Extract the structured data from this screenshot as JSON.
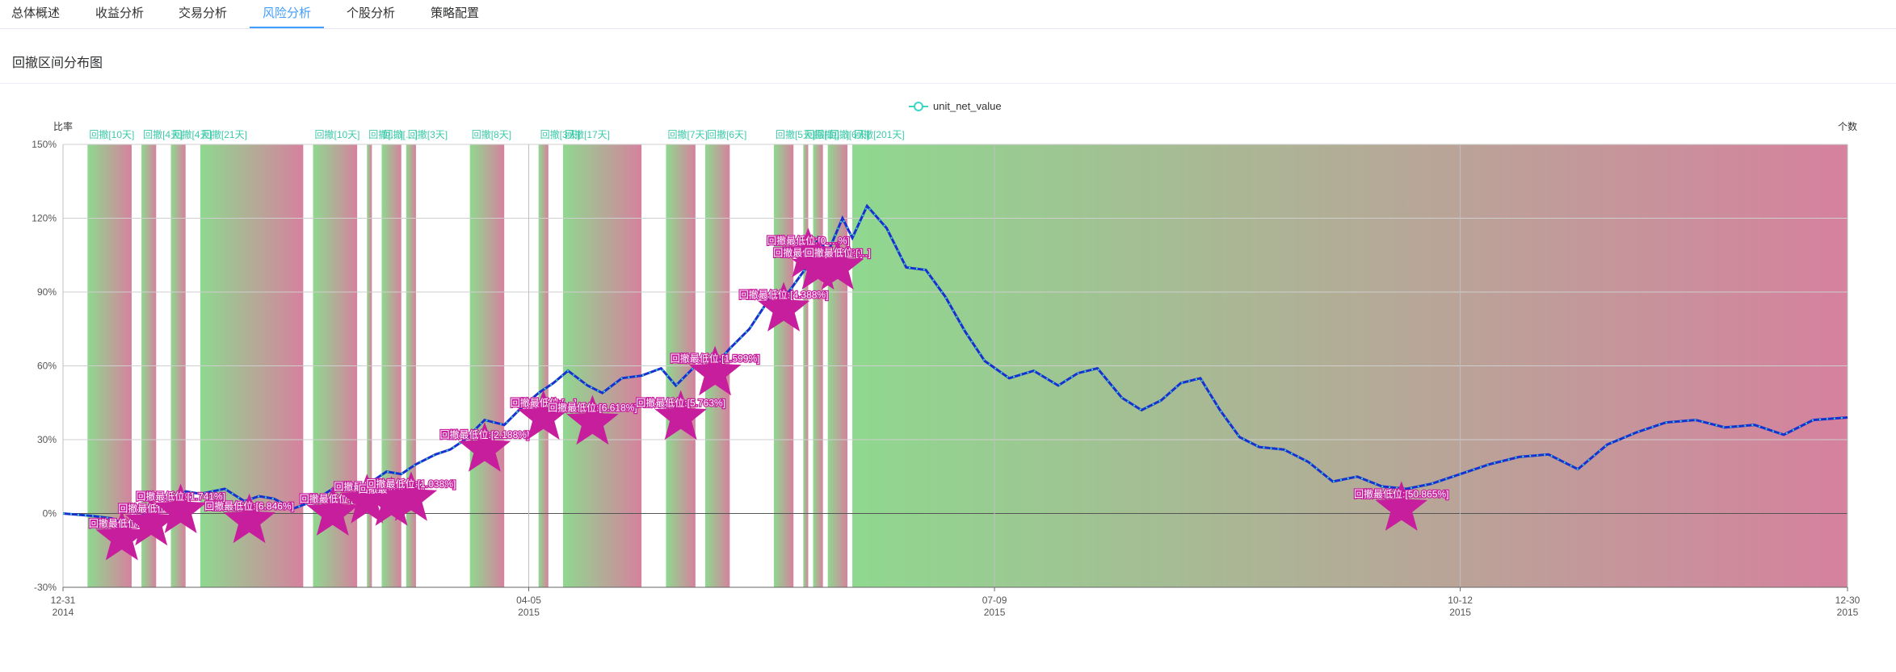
{
  "tabs": [
    "总体概述",
    "收益分析",
    "交易分析",
    "风险分析",
    "个股分析",
    "策略配置"
  ],
  "active_tab": "风险分析",
  "panel": {
    "title": "回撤区间分布图"
  },
  "chart_data": {
    "type": "line",
    "title": "",
    "series_name": "unit_net_value",
    "ylabel_left": "比率",
    "ylabel_right": "个数",
    "ylim": [
      -30,
      150
    ],
    "yticks": [
      -30,
      0,
      30,
      60,
      90,
      120,
      150
    ],
    "ytick_labels": [
      "-30%",
      "0%",
      "30%",
      "60%",
      "90%",
      "120%",
      "150%"
    ],
    "x_start": "2014-12-31",
    "x_end": "2015-12-30",
    "xticks": [
      {
        "date": "2014-12-31",
        "l1": "12-31",
        "l2": "2014"
      },
      {
        "date": "2015-04-05",
        "l1": "04-05",
        "l2": "2015"
      },
      {
        "date": "2015-07-09",
        "l1": "07-09",
        "l2": "2015"
      },
      {
        "date": "2015-10-12",
        "l1": "10-12",
        "l2": "2015"
      },
      {
        "date": "2015-12-30",
        "l1": "12-30",
        "l2": "2015"
      }
    ],
    "colors": {
      "line": "#1a2fcf",
      "dots": "#3ad7c8",
      "band_start": "#8fd88f",
      "band_end": "#d6819e",
      "marker": "#c71e9e",
      "label": "#3ccaa8"
    },
    "drawdowns": [
      {
        "start": "2015-01-05",
        "end": "2015-01-14",
        "label": "回撤[10天]",
        "trough": "2015-01-12",
        "trough_value": -10,
        "trough_label": "回撤最低位:[…]"
      },
      {
        "start": "2015-01-16",
        "end": "2015-01-19",
        "label": "回撤[4天]",
        "trough": "2015-01-18",
        "trough_value": -4,
        "trough_label": "回撤最低位:[…]"
      },
      {
        "start": "2015-01-22",
        "end": "2015-01-25",
        "label": "回撤[4天]",
        "trough": "2015-01-24",
        "trough_value": 1,
        "trough_label": "回撤最低位:[1.741%]"
      },
      {
        "start": "2015-01-28",
        "end": "2015-02-18",
        "label": "回撤[21天]",
        "trough": "2015-02-07",
        "trough_value": -3,
        "trough_label": "回撤最低位:[6.846%]"
      },
      {
        "start": "2015-02-20",
        "end": "2015-03-01",
        "label": "回撤[10天]",
        "trough": "2015-02-24",
        "trough_value": 0,
        "trough_label": "回撤最低位:[…]"
      },
      {
        "start": "2015-03-03",
        "end": "2015-03-04",
        "label": "回撤[…]",
        "trough": "2015-03-03",
        "trough_value": 5,
        "trough_label": "回撤最低位:[…]"
      },
      {
        "start": "2015-03-06",
        "end": "2015-03-10",
        "label": "回撤[…]",
        "trough": "2015-03-08",
        "trough_value": 4,
        "trough_label": "回撤最低位:[…]"
      },
      {
        "start": "2015-03-11",
        "end": "2015-03-13",
        "label": "回撤[3天]",
        "trough": "2015-03-12",
        "trough_value": 6,
        "trough_label": "回撤最低位:[1.038%]"
      },
      {
        "start": "2015-03-24",
        "end": "2015-03-31",
        "label": "回撤[8天]",
        "trough": "2015-03-27",
        "trough_value": 26,
        "trough_label": "回撤最低位:[2.188%]"
      },
      {
        "start": "2015-04-07",
        "end": "2015-04-09",
        "label": "回撤[3天]",
        "trough": "2015-04-08",
        "trough_value": 39,
        "trough_label": "回撤最低位:[…]"
      },
      {
        "start": "2015-04-12",
        "end": "2015-04-28",
        "label": "回撤[17天]",
        "trough": "2015-04-18",
        "trough_value": 37,
        "trough_label": "回撤最低位:[6.618%]"
      },
      {
        "start": "2015-05-03",
        "end": "2015-05-09",
        "label": "回撤[7天]",
        "trough": "2015-05-06",
        "trough_value": 39,
        "trough_label": "回撤最低位:[5.763%]"
      },
      {
        "start": "2015-05-11",
        "end": "2015-05-16",
        "label": "回撤[6天]",
        "trough": "2015-05-13",
        "trough_value": 57,
        "trough_label": "回撤最低位:[1.599%]"
      },
      {
        "start": "2015-05-25",
        "end": "2015-05-29",
        "label": "回撤[5天]",
        "trough": "2015-05-27",
        "trough_value": 83,
        "trough_label": "回撤最低位:[4.388%]"
      },
      {
        "start": "2015-05-31",
        "end": "2015-06-01",
        "label": "回撤[…]",
        "trough": "2015-06-01",
        "trough_value": 105,
        "trough_label": "回撤最低位:[0.…%]"
      },
      {
        "start": "2015-06-02",
        "end": "2015-06-04",
        "label": "回撤[…]",
        "trough": "2015-06-03",
        "trough_value": 100,
        "trough_label": "回撤最低位:[4.605%]"
      },
      {
        "start": "2015-06-05",
        "end": "2015-06-09",
        "label": "回撤[6天]",
        "trough": "2015-06-07",
        "trough_value": 100,
        "trough_label": "回撤最低位:[…]"
      },
      {
        "start": "2015-06-10",
        "end": "2015-12-30",
        "label": "回撤[201天]",
        "trough": "2015-09-30",
        "trough_value": 2,
        "trough_label": "回撤最低位:[50.865%]"
      }
    ],
    "x": [
      "2014-12-31",
      "2015-01-06",
      "2015-01-10",
      "2015-01-13",
      "2015-01-15",
      "2015-01-18",
      "2015-01-21",
      "2015-01-25",
      "2015-01-28",
      "2015-02-02",
      "2015-02-06",
      "2015-02-09",
      "2015-02-12",
      "2015-02-16",
      "2015-02-20",
      "2015-02-24",
      "2015-02-28",
      "2015-03-02",
      "2015-03-04",
      "2015-03-07",
      "2015-03-10",
      "2015-03-13",
      "2015-03-17",
      "2015-03-20",
      "2015-03-23",
      "2015-03-27",
      "2015-03-31",
      "2015-04-03",
      "2015-04-07",
      "2015-04-10",
      "2015-04-13",
      "2015-04-17",
      "2015-04-20",
      "2015-04-24",
      "2015-04-28",
      "2015-05-02",
      "2015-05-05",
      "2015-05-09",
      "2015-05-12",
      "2015-05-16",
      "2015-05-20",
      "2015-05-24",
      "2015-05-28",
      "2015-06-01",
      "2015-06-03",
      "2015-06-05",
      "2015-06-08",
      "2015-06-10",
      "2015-06-13",
      "2015-06-17",
      "2015-06-21",
      "2015-06-25",
      "2015-06-29",
      "2015-07-03",
      "2015-07-07",
      "2015-07-12",
      "2015-07-17",
      "2015-07-22",
      "2015-07-26",
      "2015-07-30",
      "2015-08-04",
      "2015-08-08",
      "2015-08-12",
      "2015-08-16",
      "2015-08-20",
      "2015-08-24",
      "2015-08-28",
      "2015-09-01",
      "2015-09-06",
      "2015-09-11",
      "2015-09-16",
      "2015-09-21",
      "2015-09-26",
      "2015-10-01",
      "2015-10-06",
      "2015-10-12",
      "2015-10-18",
      "2015-10-24",
      "2015-10-30",
      "2015-11-05",
      "2015-11-11",
      "2015-11-17",
      "2015-11-23",
      "2015-11-29",
      "2015-12-05",
      "2015-12-11",
      "2015-12-17",
      "2015-12-23",
      "2015-12-30"
    ],
    "values": [
      0,
      -1,
      -2,
      -5,
      -3,
      3,
      1,
      9,
      8,
      10,
      5,
      7,
      6,
      2,
      5,
      10,
      11,
      9,
      13,
      17,
      16,
      20,
      24,
      26,
      30,
      38,
      36,
      42,
      49,
      53,
      58,
      52,
      49,
      55,
      56,
      59,
      52,
      60,
      58,
      67,
      75,
      87,
      90,
      101,
      112,
      106,
      120,
      112,
      125,
      116,
      100,
      99,
      88,
      74,
      62,
      55,
      58,
      52,
      57,
      59,
      47,
      42,
      46,
      53,
      55,
      42,
      31,
      27,
      26,
      21,
      13,
      15,
      11,
      10,
      12,
      16,
      20,
      23,
      24,
      18,
      28,
      33,
      37,
      38,
      35,
      36,
      32,
      38,
      39
    ]
  }
}
